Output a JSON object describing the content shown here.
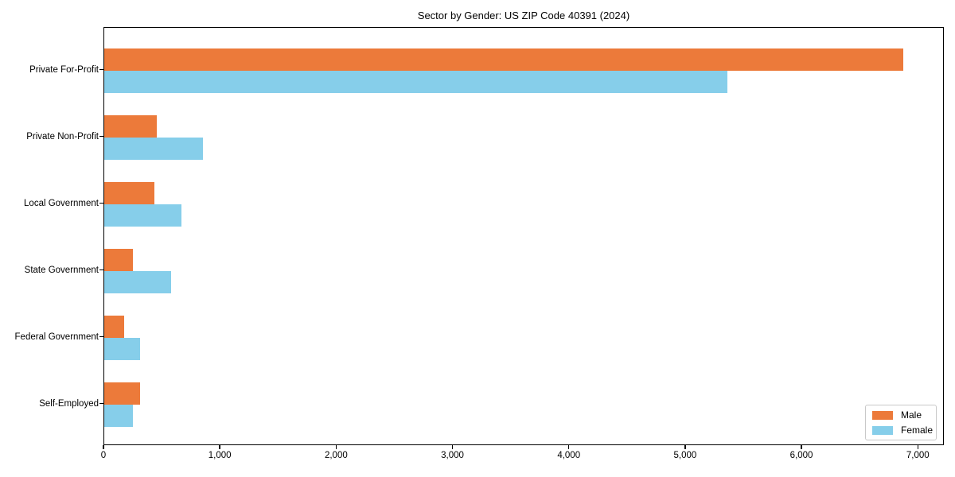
{
  "title": "Sector by Gender: US ZIP Code 40391 (2024)",
  "chart_data": {
    "type": "bar",
    "orientation": "horizontal",
    "title": "Sector by Gender: US ZIP Code 40391 (2024)",
    "categories": [
      "Private For-Profit",
      "Private Non-Profit",
      "Local Government",
      "State Government",
      "Federal Government",
      "Self-Employed"
    ],
    "series": [
      {
        "name": "Male",
        "color": "#ec7a3a",
        "values": [
          6880,
          450,
          435,
          245,
          170,
          310
        ]
      },
      {
        "name": "Female",
        "color": "#86ceea",
        "values": [
          5365,
          850,
          665,
          575,
          310,
          245
        ]
      }
    ],
    "xlabel": "",
    "ylabel": "",
    "xlim": [
      0,
      7224
    ],
    "xticks": [
      0,
      1000,
      2000,
      3000,
      4000,
      5000,
      6000,
      7000
    ],
    "xtick_labels": [
      "0",
      "1,000",
      "2,000",
      "3,000",
      "4,000",
      "5,000",
      "6,000",
      "7,000"
    ],
    "grid": false,
    "legend": {
      "position": "lower right",
      "entries": [
        "Male",
        "Female"
      ]
    }
  }
}
